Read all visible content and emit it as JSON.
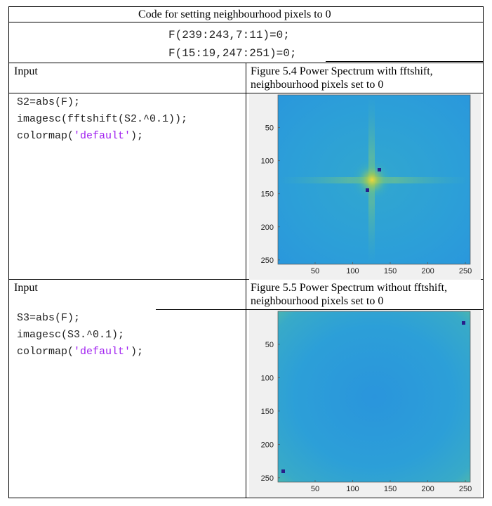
{
  "header": {
    "title": "Code for setting neighbourhood pixels to 0",
    "code_lines": [
      "F(239:243,7:11)=0;",
      "F(15:19,247:251)=0;"
    ]
  },
  "rows": [
    {
      "input_label": "Input",
      "figure_caption_1": "Figure 5.4 Power Spectrum with fftshift,",
      "figure_caption_2": "neighbourhood pixels set to 0",
      "code": {
        "line1": "S2=abs(F);",
        "line2": "imagesc(fftshift(S2.^0.1));",
        "line3_pre": "colormap(",
        "line3_str": "'default'",
        "line3_post": ");"
      },
      "plot": {
        "y_ticks": [
          "50",
          "100",
          "150",
          "200",
          "250"
        ],
        "x_ticks": [
          "50",
          "100",
          "150",
          "200",
          "250"
        ]
      }
    },
    {
      "input_label": "Input",
      "figure_caption_1": "Figure 5.5 Power Spectrum without fftshift,",
      "figure_caption_2": "neighbourhood pixels set to 0",
      "code": {
        "line1": "S3=abs(F);",
        "line2": "imagesc(S3.^0.1);",
        "line3_pre": "colormap(",
        "line3_str": "'default'",
        "line3_post": ");"
      },
      "plot": {
        "y_ticks": [
          "50",
          "100",
          "150",
          "200",
          "250"
        ],
        "x_ticks": [
          "50",
          "100",
          "150",
          "200",
          "250"
        ]
      }
    }
  ],
  "colors": {
    "field": "#2c9fd8",
    "field_edge": "#4cb9a8",
    "dot": "#281f8a",
    "center_glow": "#f2d83a"
  }
}
